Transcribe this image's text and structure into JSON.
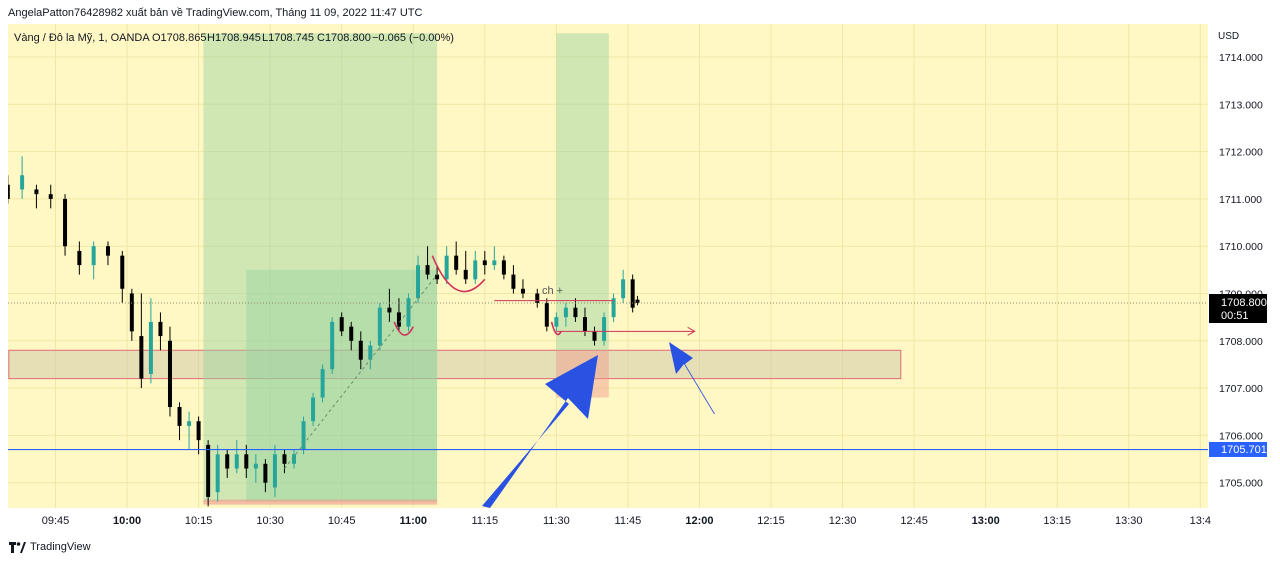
{
  "header": {
    "published_by": "AngelaPatton76428982 xuất bản về TradingView.com, Tháng 11 09, 2022 11:47 UTC"
  },
  "legend": {
    "symbol": "Vàng / Đô la Mỹ, 1, OANDA",
    "open": "O1708.865",
    "high": "H1708.945",
    "low": "L1708.745",
    "close": "C1708.800",
    "change": "−0.065 (−0.00%)"
  },
  "axis": {
    "currency": "USD",
    "price_ticks": [
      "1714.000",
      "1713.000",
      "1712.000",
      "1711.000",
      "1710.000",
      "1709.000",
      "1708.000",
      "1707.000",
      "1706.000",
      "1705.000"
    ],
    "time_ticks": [
      "09:45",
      "10:00",
      "10:15",
      "10:30",
      "10:45",
      "11:00",
      "11:15",
      "11:30",
      "11:45",
      "12:00",
      "12:15",
      "12:30",
      "12:45",
      "13:00",
      "13:15",
      "13:30",
      "13:4"
    ],
    "bold_time_ticks": [
      "10:00",
      "11:00",
      "12:00",
      "13:00"
    ]
  },
  "price_labels": {
    "last_price": "1708.800",
    "countdown": "00:51",
    "horizontal_line": "1705.701"
  },
  "annotation": {
    "text": "ch +"
  },
  "footer": {
    "brand": "TradingView"
  },
  "colors": {
    "background": "#fff8c4",
    "bullish": "#26a69a",
    "bearish": "#000000",
    "blue_line": "#2962ff",
    "arrow": "#2952e3",
    "zone_border": "#e06a7a",
    "green_box": "#a9dba8"
  },
  "chart_data": {
    "type": "candlestick",
    "title": "Vàng / Đô la Mỹ, 1, OANDA",
    "x_range": [
      "09:35",
      "13:45"
    ],
    "ylim": [
      1704.5,
      1714.5
    ],
    "horizontal_line": 1705.701,
    "last_price": 1708.8,
    "zones": [
      {
        "kind": "support_zone",
        "from": "09:35",
        "to": "12:42",
        "low": 1707.2,
        "high": 1707.8
      },
      {
        "kind": "green_box",
        "from": "10:16",
        "to": "11:05",
        "low": 1704.6,
        "high": 1714.5
      },
      {
        "kind": "green_box",
        "from": "10:25",
        "to": "11:05",
        "low": 1704.6,
        "high": 1709.5
      },
      {
        "kind": "green_box",
        "from": "11:30",
        "to": "11:41",
        "low": 1707.8,
        "high": 1714.5
      },
      {
        "kind": "red_box",
        "from": "11:30",
        "to": "11:41",
        "low": 1706.8,
        "high": 1707.8
      }
    ],
    "candles_approx": [
      {
        "t": "09:35",
        "o": 1711.3,
        "h": 1711.5,
        "l": 1710.9,
        "c": 1711.0
      },
      {
        "t": "09:38",
        "o": 1711.2,
        "h": 1711.9,
        "l": 1711.0,
        "c": 1711.5
      },
      {
        "t": "09:41",
        "o": 1711.2,
        "h": 1711.3,
        "l": 1710.8,
        "c": 1711.1
      },
      {
        "t": "09:44",
        "o": 1711.1,
        "h": 1711.3,
        "l": 1710.8,
        "c": 1711.0
      },
      {
        "t": "09:47",
        "o": 1711.0,
        "h": 1711.1,
        "l": 1709.8,
        "c": 1710.0
      },
      {
        "t": "09:50",
        "o": 1709.9,
        "h": 1710.1,
        "l": 1709.4,
        "c": 1709.6
      },
      {
        "t": "09:53",
        "o": 1709.6,
        "h": 1710.1,
        "l": 1709.3,
        "c": 1710.0
      },
      {
        "t": "09:56",
        "o": 1710.0,
        "h": 1710.1,
        "l": 1709.6,
        "c": 1709.8
      },
      {
        "t": "09:59",
        "o": 1709.8,
        "h": 1709.9,
        "l": 1708.8,
        "c": 1709.1
      },
      {
        "t": "10:01",
        "o": 1709.0,
        "h": 1709.1,
        "l": 1708.0,
        "c": 1708.2
      },
      {
        "t": "10:03",
        "o": 1708.1,
        "h": 1709.0,
        "l": 1707.0,
        "c": 1707.2
      },
      {
        "t": "10:05",
        "o": 1707.3,
        "h": 1708.9,
        "l": 1707.1,
        "c": 1708.4
      },
      {
        "t": "10:07",
        "o": 1708.4,
        "h": 1708.6,
        "l": 1707.8,
        "c": 1708.1
      },
      {
        "t": "10:09",
        "o": 1708.0,
        "h": 1708.3,
        "l": 1706.4,
        "c": 1706.6
      },
      {
        "t": "10:11",
        "o": 1706.6,
        "h": 1706.7,
        "l": 1705.9,
        "c": 1706.2
      },
      {
        "t": "10:13",
        "o": 1706.2,
        "h": 1706.5,
        "l": 1705.7,
        "c": 1706.3
      },
      {
        "t": "10:15",
        "o": 1706.3,
        "h": 1706.4,
        "l": 1705.6,
        "c": 1705.9
      },
      {
        "t": "10:17",
        "o": 1705.8,
        "h": 1705.9,
        "l": 1704.5,
        "c": 1704.7
      },
      {
        "t": "10:19",
        "o": 1704.8,
        "h": 1705.8,
        "l": 1704.6,
        "c": 1705.6
      },
      {
        "t": "10:21",
        "o": 1705.6,
        "h": 1705.7,
        "l": 1705.1,
        "c": 1705.3
      },
      {
        "t": "10:23",
        "o": 1705.3,
        "h": 1705.9,
        "l": 1705.2,
        "c": 1705.6
      },
      {
        "t": "10:25",
        "o": 1705.6,
        "h": 1705.8,
        "l": 1705.1,
        "c": 1705.3
      },
      {
        "t": "10:27",
        "o": 1705.3,
        "h": 1705.6,
        "l": 1705.0,
        "c": 1705.4
      },
      {
        "t": "10:29",
        "o": 1705.4,
        "h": 1705.5,
        "l": 1704.8,
        "c": 1705.0
      },
      {
        "t": "10:31",
        "o": 1704.9,
        "h": 1705.8,
        "l": 1704.7,
        "c": 1705.6
      },
      {
        "t": "10:33",
        "o": 1705.6,
        "h": 1705.7,
        "l": 1705.2,
        "c": 1705.4
      },
      {
        "t": "10:35",
        "o": 1705.4,
        "h": 1705.7,
        "l": 1705.3,
        "c": 1705.6
      },
      {
        "t": "10:37",
        "o": 1705.7,
        "h": 1706.4,
        "l": 1705.6,
        "c": 1706.3
      },
      {
        "t": "10:39",
        "o": 1706.3,
        "h": 1706.9,
        "l": 1706.2,
        "c": 1706.8
      },
      {
        "t": "10:41",
        "o": 1706.8,
        "h": 1707.5,
        "l": 1706.7,
        "c": 1707.4
      },
      {
        "t": "10:43",
        "o": 1707.4,
        "h": 1708.5,
        "l": 1707.3,
        "c": 1708.4
      },
      {
        "t": "10:45",
        "o": 1708.5,
        "h": 1708.6,
        "l": 1708.1,
        "c": 1708.2
      },
      {
        "t": "10:47",
        "o": 1708.3,
        "h": 1708.4,
        "l": 1707.8,
        "c": 1708.0
      },
      {
        "t": "10:49",
        "o": 1708.0,
        "h": 1708.2,
        "l": 1707.4,
        "c": 1707.6
      },
      {
        "t": "10:51",
        "o": 1707.6,
        "h": 1708.0,
        "l": 1707.4,
        "c": 1707.9
      },
      {
        "t": "10:53",
        "o": 1707.9,
        "h": 1708.8,
        "l": 1707.8,
        "c": 1708.7
      },
      {
        "t": "10:55",
        "o": 1708.7,
        "h": 1709.1,
        "l": 1708.4,
        "c": 1708.6
      },
      {
        "t": "10:57",
        "o": 1708.6,
        "h": 1708.9,
        "l": 1708.2,
        "c": 1708.3
      },
      {
        "t": "10:59",
        "o": 1708.3,
        "h": 1709.0,
        "l": 1708.2,
        "c": 1708.9
      },
      {
        "t": "11:01",
        "o": 1708.9,
        "h": 1709.8,
        "l": 1708.8,
        "c": 1709.6
      },
      {
        "t": "11:03",
        "o": 1709.6,
        "h": 1710.0,
        "l": 1709.3,
        "c": 1709.4
      },
      {
        "t": "11:05",
        "o": 1709.4,
        "h": 1709.6,
        "l": 1709.2,
        "c": 1709.3
      },
      {
        "t": "11:07",
        "o": 1709.3,
        "h": 1710.0,
        "l": 1709.2,
        "c": 1709.8
      },
      {
        "t": "11:09",
        "o": 1709.8,
        "h": 1710.1,
        "l": 1709.4,
        "c": 1709.5
      },
      {
        "t": "11:11",
        "o": 1709.5,
        "h": 1709.9,
        "l": 1709.2,
        "c": 1709.3
      },
      {
        "t": "11:13",
        "o": 1709.3,
        "h": 1709.9,
        "l": 1709.2,
        "c": 1709.7
      },
      {
        "t": "11:15",
        "o": 1709.7,
        "h": 1709.9,
        "l": 1709.4,
        "c": 1709.6
      },
      {
        "t": "11:17",
        "o": 1709.6,
        "h": 1710.0,
        "l": 1709.5,
        "c": 1709.7
      },
      {
        "t": "11:19",
        "o": 1709.7,
        "h": 1709.8,
        "l": 1709.3,
        "c": 1709.4
      },
      {
        "t": "11:21",
        "o": 1709.4,
        "h": 1709.6,
        "l": 1709.0,
        "c": 1709.1
      },
      {
        "t": "11:23",
        "o": 1709.1,
        "h": 1709.3,
        "l": 1708.9,
        "c": 1709.0
      },
      {
        "t": "11:26",
        "o": 1709.0,
        "h": 1709.1,
        "l": 1708.7,
        "c": 1708.8
      },
      {
        "t": "11:28",
        "o": 1708.8,
        "h": 1708.9,
        "l": 1708.2,
        "c": 1708.3
      },
      {
        "t": "11:30",
        "o": 1708.3,
        "h": 1708.6,
        "l": 1708.2,
        "c": 1708.5
      },
      {
        "t": "11:32",
        "o": 1708.5,
        "h": 1708.8,
        "l": 1708.3,
        "c": 1708.7
      },
      {
        "t": "11:34",
        "o": 1708.7,
        "h": 1708.9,
        "l": 1708.4,
        "c": 1708.5
      },
      {
        "t": "11:36",
        "o": 1708.5,
        "h": 1708.7,
        "l": 1708.1,
        "c": 1708.2
      },
      {
        "t": "11:38",
        "o": 1708.2,
        "h": 1708.3,
        "l": 1707.9,
        "c": 1708.0
      },
      {
        "t": "11:40",
        "o": 1708.0,
        "h": 1708.6,
        "l": 1707.9,
        "c": 1708.5
      },
      {
        "t": "11:42",
        "o": 1708.5,
        "h": 1709.0,
        "l": 1708.4,
        "c": 1708.9
      },
      {
        "t": "11:44",
        "o": 1708.9,
        "h": 1709.5,
        "l": 1708.8,
        "c": 1709.3
      },
      {
        "t": "11:46",
        "o": 1709.3,
        "h": 1709.4,
        "l": 1708.6,
        "c": 1708.7
      },
      {
        "t": "11:47",
        "o": 1708.87,
        "h": 1708.95,
        "l": 1708.75,
        "c": 1708.8
      }
    ]
  }
}
